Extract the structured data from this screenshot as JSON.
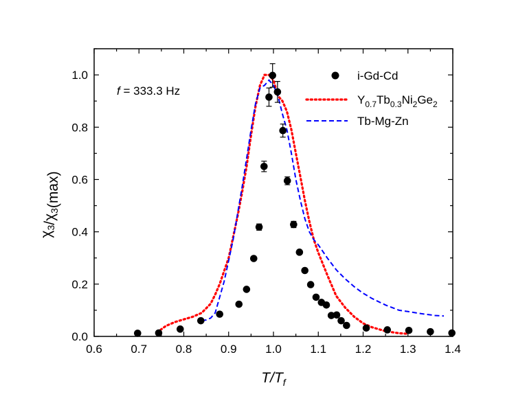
{
  "chart_data": {
    "type": "scatter",
    "title": "",
    "xlabel": "T/T_f",
    "ylabel": "χ_3/χ_3(max)",
    "xlim": [
      0.6,
      1.4
    ],
    "ylim": [
      0.0,
      1.1
    ],
    "x_ticks": [
      "0.6",
      "0.7",
      "0.8",
      "0.9",
      "1.0",
      "1.1",
      "1.2",
      "1.3",
      "1.4"
    ],
    "y_ticks": [
      "0.0",
      "0.2",
      "0.4",
      "0.6",
      "0.8",
      "1.0"
    ],
    "annotation": {
      "italic": "f",
      "text": " = 333.3 Hz"
    },
    "legend_position": "top-right",
    "legend": [
      {
        "key": "igdcd",
        "label": "i-Gd-Cd",
        "style": "markers"
      },
      {
        "key": "ytbnige",
        "parts": [
          "Y",
          "0.7",
          "Tb",
          "0.3",
          "Ni",
          "2",
          "Ge",
          "2"
        ],
        "style": "dotted"
      },
      {
        "key": "tbmgzn",
        "label": "Tb-Mg-Zn",
        "style": "dashed"
      }
    ],
    "series": [
      {
        "name": "i-Gd-Cd",
        "style": "markers",
        "color": "#000000",
        "points": [
          [
            0.697,
            0.012,
            0
          ],
          [
            0.744,
            0.013,
            0
          ],
          [
            0.792,
            0.028,
            0
          ],
          [
            0.838,
            0.06,
            0
          ],
          [
            0.88,
            0.085,
            0
          ],
          [
            0.923,
            0.123,
            0
          ],
          [
            0.94,
            0.18,
            0
          ],
          [
            0.956,
            0.298,
            0
          ],
          [
            0.968,
            0.418,
            0.012
          ],
          [
            0.979,
            0.65,
            0.02
          ],
          [
            0.99,
            0.915,
            0.035
          ],
          [
            0.998,
            0.998,
            0.045
          ],
          [
            1.009,
            0.935,
            0.04
          ],
          [
            1.021,
            0.787,
            0.025
          ],
          [
            1.031,
            0.595,
            0.015
          ],
          [
            1.045,
            0.428,
            0.012
          ],
          [
            1.058,
            0.322,
            0
          ],
          [
            1.07,
            0.252,
            0
          ],
          [
            1.083,
            0.198,
            0
          ],
          [
            1.095,
            0.15,
            0
          ],
          [
            1.107,
            0.13,
            0
          ],
          [
            1.118,
            0.12,
            0
          ],
          [
            1.129,
            0.08,
            0
          ],
          [
            1.141,
            0.082,
            0
          ],
          [
            1.151,
            0.06,
            0
          ],
          [
            1.163,
            0.042,
            0
          ],
          [
            1.207,
            0.032,
            0
          ],
          [
            1.254,
            0.025,
            0
          ],
          [
            1.302,
            0.023,
            0
          ],
          [
            1.35,
            0.018,
            0
          ],
          [
            1.398,
            0.013,
            0
          ]
        ]
      },
      {
        "name": "Y0.7Tb0.3Ni2Ge2",
        "style": "dotted",
        "color": "#ff0000",
        "x": [
          0.748,
          0.76,
          0.78,
          0.8,
          0.82,
          0.84,
          0.86,
          0.87,
          0.88,
          0.89,
          0.9,
          0.91,
          0.92,
          0.93,
          0.94,
          0.95,
          0.96,
          0.97,
          0.98,
          0.99,
          1.0,
          1.01,
          1.02,
          1.03,
          1.04,
          1.05,
          1.06,
          1.07,
          1.08,
          1.09,
          1.1,
          1.12,
          1.14,
          1.16,
          1.18,
          1.2,
          1.22,
          1.25,
          1.28,
          1.3
        ],
        "y": [
          0.025,
          0.04,
          0.055,
          0.065,
          0.075,
          0.09,
          0.125,
          0.16,
          0.2,
          0.25,
          0.3,
          0.38,
          0.46,
          0.55,
          0.65,
          0.77,
          0.88,
          0.96,
          1.0,
          1.0,
          0.98,
          0.92,
          0.9,
          0.86,
          0.79,
          0.7,
          0.61,
          0.52,
          0.44,
          0.37,
          0.32,
          0.235,
          0.155,
          0.11,
          0.075,
          0.05,
          0.035,
          0.02,
          0.012,
          0.01
        ]
      },
      {
        "name": "Tb-Mg-Zn",
        "style": "dashed",
        "color": "#0000ff",
        "x": [
          0.84,
          0.85,
          0.86,
          0.87,
          0.88,
          0.89,
          0.9,
          0.91,
          0.92,
          0.93,
          0.94,
          0.95,
          0.96,
          0.97,
          0.98,
          0.99,
          1.0,
          1.01,
          1.02,
          1.03,
          1.04,
          1.05,
          1.06,
          1.07,
          1.08,
          1.09,
          1.1,
          1.12,
          1.14,
          1.16,
          1.18,
          1.2,
          1.22,
          1.25,
          1.28,
          1.3,
          1.33,
          1.36,
          1.38
        ],
        "y": [
          0.06,
          0.063,
          0.07,
          0.09,
          0.15,
          0.21,
          0.29,
          0.37,
          0.47,
          0.57,
          0.68,
          0.79,
          0.89,
          0.95,
          0.96,
          0.98,
          0.96,
          0.92,
          0.85,
          0.79,
          0.7,
          0.6,
          0.52,
          0.45,
          0.4,
          0.37,
          0.35,
          0.3,
          0.255,
          0.22,
          0.19,
          0.165,
          0.145,
          0.12,
          0.1,
          0.095,
          0.087,
          0.08,
          0.078
        ]
      }
    ]
  }
}
